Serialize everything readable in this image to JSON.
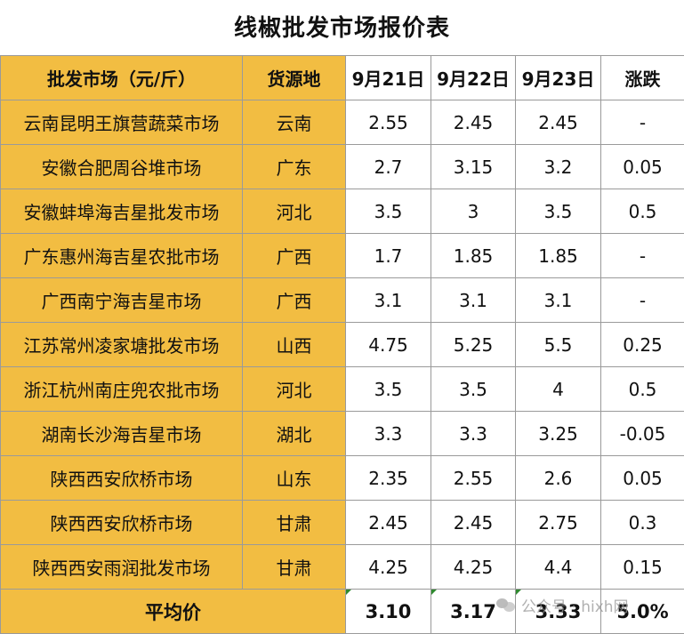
{
  "title": "线椒批发市场报价表",
  "table": {
    "headers": [
      "批发市场（元/斤）",
      "货源地",
      "9月21日",
      "9月22日",
      "9月23日",
      "涨跌"
    ],
    "rows": [
      [
        "云南昆明王旗营蔬菜市场",
        "云南",
        "2.55",
        "2.45",
        "2.45",
        "-"
      ],
      [
        "安徽合肥周谷堆市场",
        "广东",
        "2.7",
        "3.15",
        "3.2",
        "0.05"
      ],
      [
        "安徽蚌埠海吉星批发市场",
        "河北",
        "3.5",
        "3",
        "3.5",
        "0.5"
      ],
      [
        "广东惠州海吉星农批市场",
        "广西",
        "1.7",
        "1.85",
        "1.85",
        "-"
      ],
      [
        "广西南宁海吉星市场",
        "广西",
        "3.1",
        "3.1",
        "3.1",
        "-"
      ],
      [
        "江苏常州凌家塘批发市场",
        "山西",
        "4.75",
        "5.25",
        "5.5",
        "0.25"
      ],
      [
        "浙江杭州南庄兜农批市场",
        "河北",
        "3.5",
        "3.5",
        "4",
        "0.5"
      ],
      [
        "湖南长沙海吉星市场",
        "湖北",
        "3.3",
        "3.3",
        "3.25",
        "-0.05"
      ],
      [
        "陕西西安欣桥市场",
        "山东",
        "2.35",
        "2.55",
        "2.6",
        "0.05"
      ],
      [
        "陕西西安欣桥市场",
        "甘肃",
        "2.45",
        "2.45",
        "2.75",
        "0.3"
      ],
      [
        "陕西西安雨润批发市场",
        "甘肃",
        "4.25",
        "4.25",
        "4.4",
        "0.15"
      ]
    ],
    "average": {
      "label": "平均价",
      "d21": "3.10",
      "d22": "3.17",
      "d23": "3.33",
      "change": "5.0%"
    }
  },
  "watermark": {
    "icon": "wechat-icon",
    "text": "公众号 · hixh网"
  },
  "colors": {
    "gold": "#f2bd42",
    "white": "#ffffff",
    "border": "#9a9a9a",
    "marker_green": "#2f8a2f"
  }
}
